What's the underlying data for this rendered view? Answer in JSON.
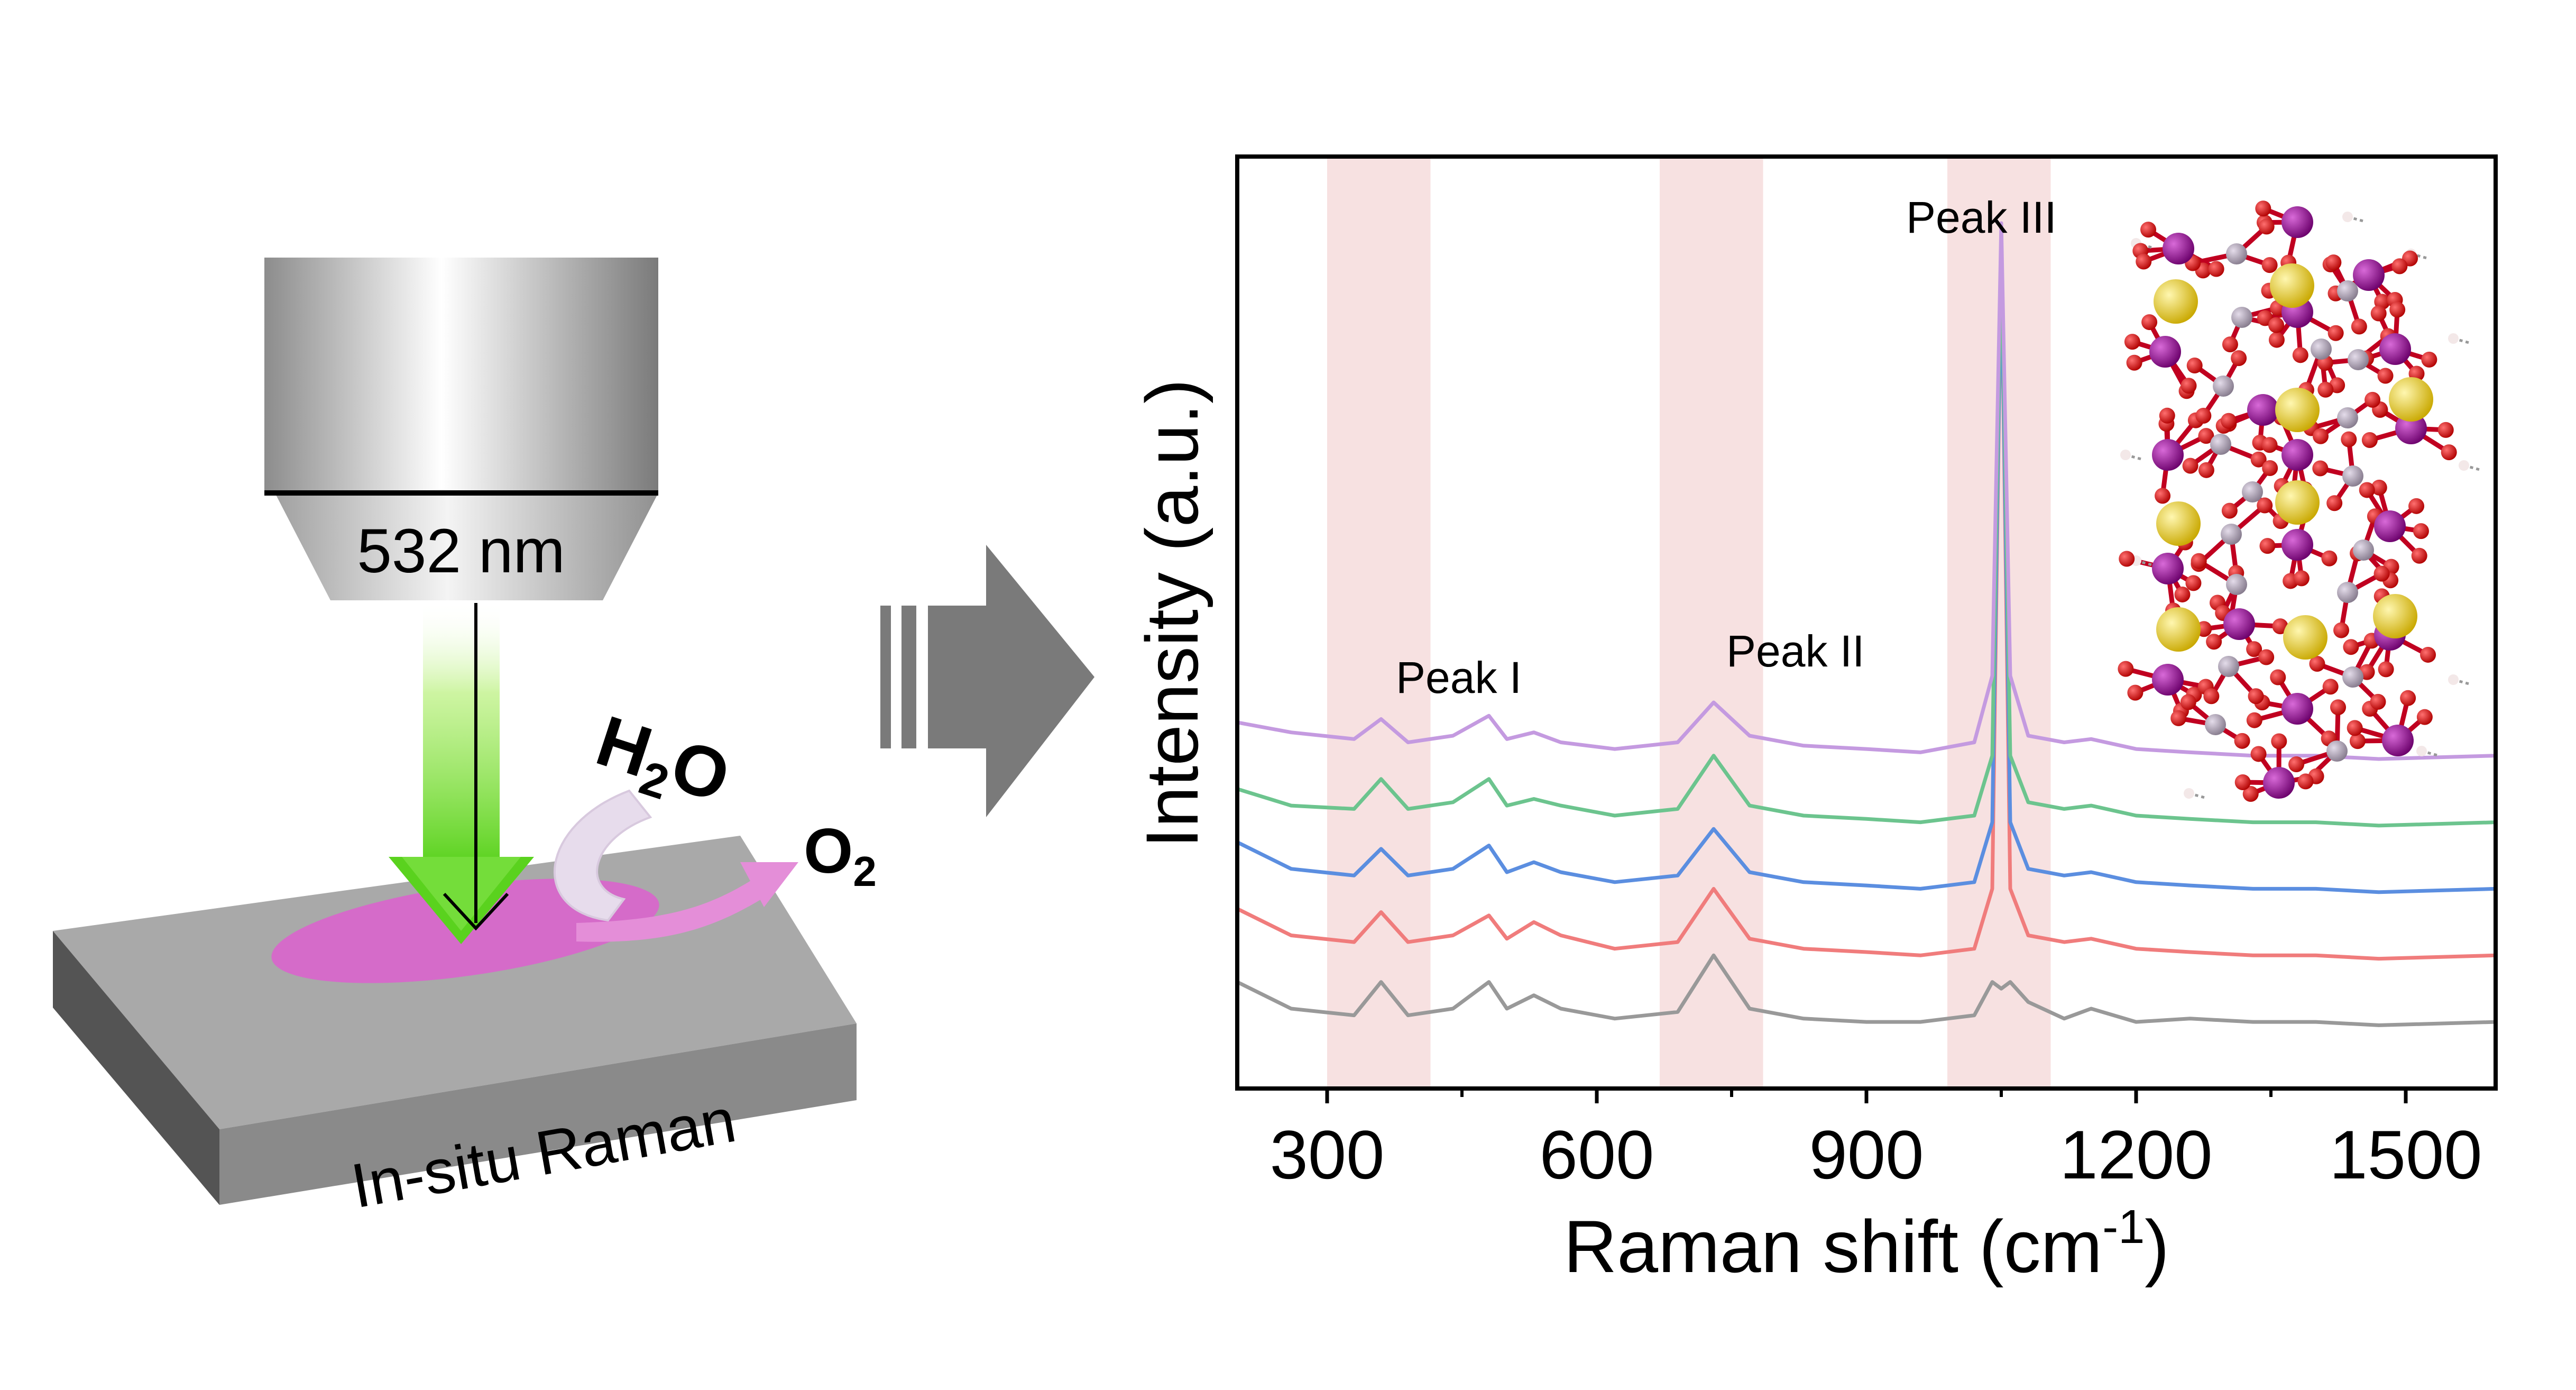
{
  "schematic": {
    "laser_label": "532 nm",
    "reactant_label": "H",
    "reactant_sub": "2",
    "reactant_tail": "O",
    "product_label": "O",
    "product_sub": "2",
    "technique_label": "In-situ Raman",
    "colors": {
      "laser": "#7fe040",
      "spot": "#d56bc9",
      "objective": "#b8b8b8",
      "substrate": "#9a9a9a"
    },
    "icons": [
      "objective-lens-icon",
      "laser-beam-icon",
      "water-flow-arrow-icon",
      "oxygen-flow-arrow-icon",
      "substrate-icon",
      "process-arrow-icon"
    ]
  },
  "inset": {
    "description_icon": "crystal-structure-icon",
    "atom_colors": [
      "#8b0a8b",
      "#d60000",
      "#a59aa8",
      "#e5c92e",
      "#f0e0e0"
    ]
  },
  "chart_data": {
    "type": "line",
    "xlabel": "Raman shift (cm",
    "xlabel_sup": "-1",
    "xlabel_tail": ")",
    "ylabel": "Intensity (a.u.)",
    "xlim": [
      200,
      1600
    ],
    "ylim": [
      0,
      14
    ],
    "x_ticks": [
      300,
      600,
      900,
      1200,
      1500
    ],
    "x_minor_ticks": [
      450,
      750,
      1050,
      1350
    ],
    "y_ticks_shown": false,
    "grid": false,
    "highlight_bands": [
      {
        "label": "Peak I",
        "range": [
          300,
          415
        ],
        "peak_x": 360
      },
      {
        "label": "Peak II",
        "range": [
          670,
          785
        ],
        "peak_x": 730
      },
      {
        "label": "Peak III",
        "range": [
          990,
          1105
        ],
        "peak_x": 1050
      }
    ],
    "band_color": "#f7e1e1",
    "series": [
      {
        "color": "#999999",
        "baseline": 1.0,
        "x": [
          200,
          260,
          330,
          360,
          390,
          440,
          480,
          500,
          530,
          560,
          620,
          690,
          730,
          770,
          830,
          900,
          960,
          1020,
          1040,
          1050,
          1060,
          1080,
          1120,
          1150,
          1200,
          1260,
          1330,
          1400,
          1470,
          1600
        ],
        "y": [
          1.6,
          1.2,
          1.1,
          1.6,
          1.1,
          1.2,
          1.6,
          1.2,
          1.4,
          1.2,
          1.05,
          1.15,
          2.0,
          1.2,
          1.05,
          1.0,
          1.0,
          1.1,
          1.6,
          1.5,
          1.6,
          1.3,
          1.05,
          1.2,
          1.0,
          1.05,
          1.0,
          1.0,
          0.95,
          1.0
        ]
      },
      {
        "color": "#f07c7c",
        "baseline": 2.0,
        "x": [
          200,
          260,
          330,
          360,
          390,
          440,
          480,
          500,
          530,
          560,
          620,
          690,
          730,
          770,
          830,
          900,
          960,
          1020,
          1040,
          1050,
          1060,
          1080,
          1120,
          1150,
          1200,
          1260,
          1330,
          1400,
          1470,
          1600
        ],
        "y": [
          2.7,
          2.3,
          2.2,
          2.65,
          2.2,
          2.3,
          2.6,
          2.25,
          2.5,
          2.3,
          2.1,
          2.2,
          3.0,
          2.25,
          2.1,
          2.05,
          2.0,
          2.1,
          3.0,
          12.6,
          3.0,
          2.3,
          2.2,
          2.25,
          2.1,
          2.05,
          2.0,
          2.0,
          1.95,
          2.0
        ]
      },
      {
        "color": "#5b8ee0",
        "baseline": 3.0,
        "x": [
          200,
          260,
          330,
          360,
          390,
          440,
          480,
          500,
          530,
          560,
          620,
          690,
          730,
          770,
          830,
          900,
          960,
          1020,
          1040,
          1050,
          1060,
          1080,
          1120,
          1150,
          1200,
          1260,
          1330,
          1400,
          1470,
          1600
        ],
        "y": [
          3.7,
          3.3,
          3.2,
          3.6,
          3.2,
          3.3,
          3.65,
          3.25,
          3.4,
          3.25,
          3.1,
          3.2,
          3.9,
          3.25,
          3.1,
          3.05,
          3.0,
          3.1,
          4.0,
          12.5,
          4.0,
          3.3,
          3.2,
          3.25,
          3.1,
          3.05,
          3.0,
          3.0,
          2.95,
          3.0
        ]
      },
      {
        "color": "#6cc48e",
        "baseline": 4.0,
        "x": [
          200,
          260,
          330,
          360,
          390,
          440,
          480,
          500,
          530,
          560,
          620,
          690,
          730,
          770,
          830,
          900,
          960,
          1020,
          1040,
          1050,
          1060,
          1080,
          1120,
          1150,
          1200,
          1260,
          1330,
          1400,
          1470,
          1600
        ],
        "y": [
          4.5,
          4.25,
          4.2,
          4.65,
          4.2,
          4.3,
          4.65,
          4.25,
          4.35,
          4.25,
          4.1,
          4.2,
          5.0,
          4.25,
          4.1,
          4.05,
          4.0,
          4.1,
          5.0,
          12.8,
          5.0,
          4.3,
          4.2,
          4.25,
          4.1,
          4.05,
          4.0,
          4.0,
          3.95,
          4.0
        ]
      },
      {
        "color": "#c49ae0",
        "baseline": 5.0,
        "x": [
          200,
          260,
          330,
          360,
          390,
          440,
          480,
          500,
          530,
          560,
          620,
          690,
          730,
          770,
          830,
          900,
          960,
          1020,
          1040,
          1050,
          1060,
          1080,
          1120,
          1150,
          1200,
          1260,
          1330,
          1400,
          1470,
          1600
        ],
        "y": [
          5.5,
          5.35,
          5.25,
          5.55,
          5.2,
          5.3,
          5.6,
          5.25,
          5.35,
          5.2,
          5.1,
          5.2,
          5.8,
          5.3,
          5.15,
          5.1,
          5.05,
          5.2,
          6.2,
          13.0,
          6.2,
          5.3,
          5.2,
          5.25,
          5.1,
          5.05,
          5.0,
          5.0,
          4.95,
          5.0
        ]
      }
    ]
  }
}
